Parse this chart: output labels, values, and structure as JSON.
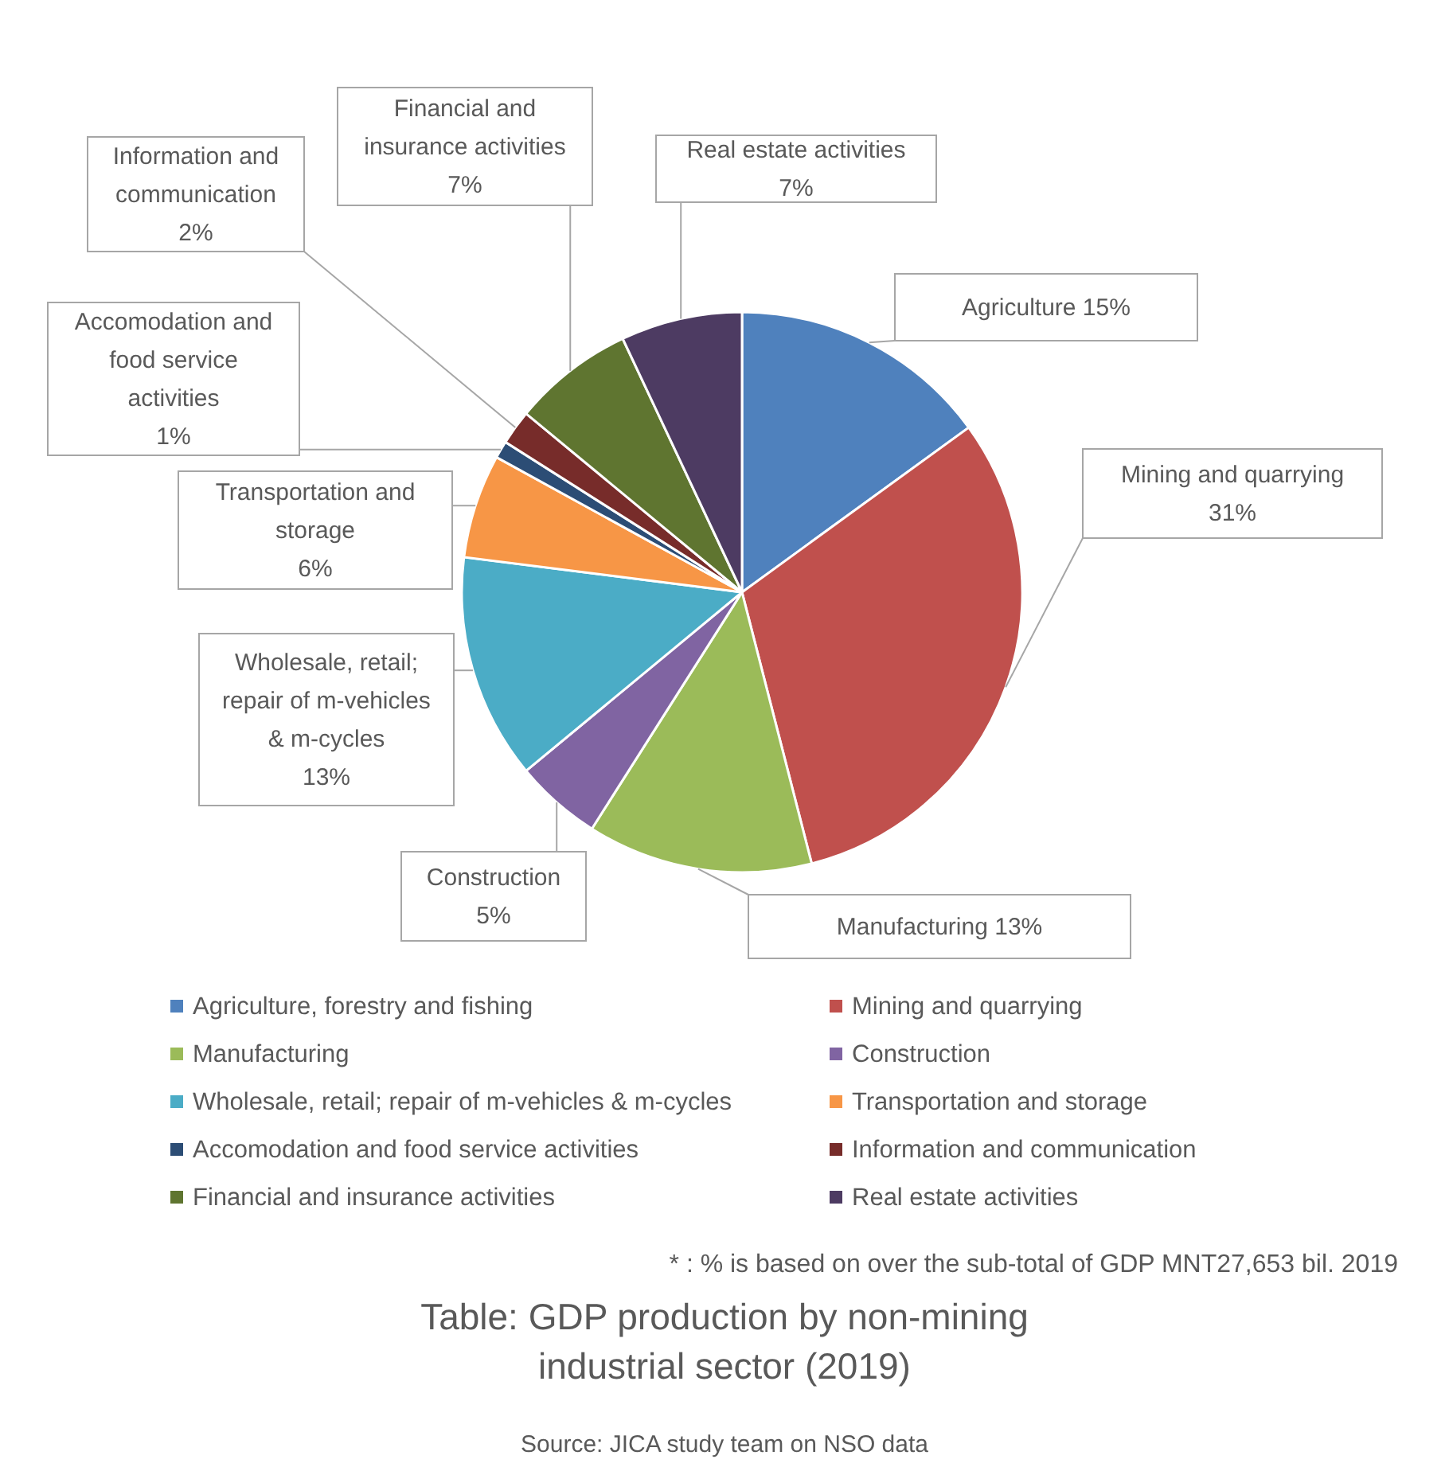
{
  "chart_data": {
    "type": "pie",
    "title": "Table: GDP production by non-mining industrial sector (2019)",
    "categories": [
      "Agriculture, forestry and fishing",
      "Mining and quarrying",
      "Manufacturing",
      "Construction",
      "Wholesale, retail; repair of m-vehicles & m-cycles",
      "Transportation and storage",
      "Accomodation and food service activities",
      "Information and communication",
      "Financial and insurance activities",
      "Real estate activities"
    ],
    "values": [
      15,
      31,
      13,
      5,
      13,
      6,
      1,
      2,
      7,
      7
    ],
    "colors": [
      "#4f81bd",
      "#c0504d",
      "#9bbb59",
      "#8064a2",
      "#4bacc6",
      "#f79646",
      "#2c4d75",
      "#772c2a",
      "#5f7530",
      "#4d3b62"
    ],
    "value_labels": [
      "Agriculture 15%",
      "Mining and quarrying\n31%",
      "Manufacturing 13%",
      "Construction\n5%",
      "Wholesale, retail;\nrepair of m-vehicles\n& m-cycles\n13%",
      "Transportation and\nstorage\n6%",
      "Accomodation and\nfood service\nactivities\n1%",
      "Information and\ncommunication\n2%",
      "Financial and\ninsurance activities\n7%",
      "Real estate activities\n7%"
    ],
    "legend": "bottom",
    "annotations": [
      "* : % is based on over the sub-total of GDP MNT27,653 bil. 2019",
      "Source: JICA study team on NSO data"
    ]
  }
}
